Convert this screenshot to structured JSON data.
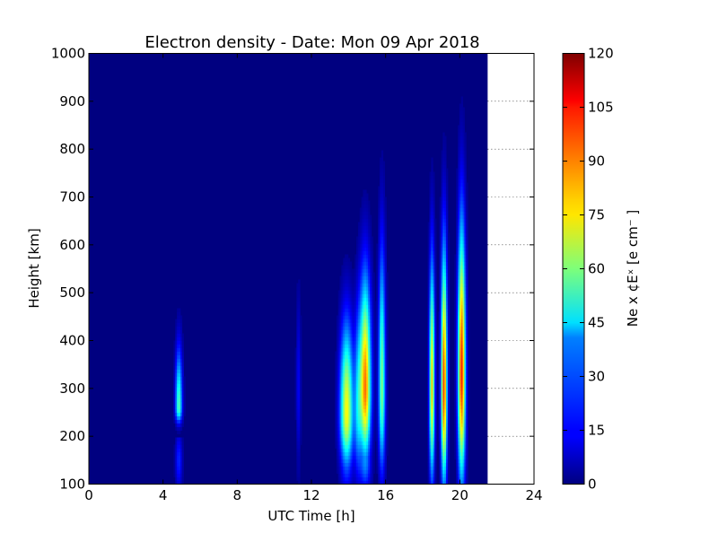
{
  "chart_data": {
    "type": "heatmap",
    "title": "Electron density - Date: Mon 09 Apr 2018",
    "xlabel": "UTC Time [h]",
    "ylabel": "Height [km]",
    "xlim": [
      0,
      24
    ],
    "ylim": [
      100,
      1000
    ],
    "x_ticks": [
      "0",
      "4",
      "8",
      "12",
      "16",
      "20",
      "24"
    ],
    "x_tick_values": [
      0,
      4,
      8,
      12,
      16,
      20,
      24
    ],
    "y_ticks": [
      "100",
      "200",
      "300",
      "400",
      "500",
      "600",
      "700",
      "800",
      "900",
      "1000"
    ],
    "y_tick_values": [
      100,
      200,
      300,
      400,
      500,
      600,
      700,
      800,
      900,
      1000
    ],
    "data_end_time": 21.5,
    "background_value": 0,
    "colormap": "jet",
    "colorbar": {
      "label": "Ne x ¢Eˣ  [e cm⁻ ]",
      "min": 0,
      "max": 120,
      "ticks": [
        "0",
        "15",
        "30",
        "45",
        "60",
        "75",
        "90",
        "105",
        "120"
      ],
      "tick_values": [
        0,
        15,
        30,
        45,
        60,
        75,
        90,
        105,
        120
      ]
    },
    "events": [
      {
        "time": 4.85,
        "width": 0.18,
        "peak": 55,
        "peak_height": 260,
        "spread_low": 30,
        "spread_high": 120
      },
      {
        "time": 11.3,
        "width": 0.12,
        "peak": 14,
        "peak_height": 300,
        "spread_low": 140,
        "spread_high": 180
      },
      {
        "time": 13.9,
        "width": 0.35,
        "peak": 75,
        "peak_height": 250,
        "spread_low": 110,
        "spread_high": 180
      },
      {
        "time": 14.5,
        "width": 0.18,
        "peak": 30,
        "peak_height": 250,
        "spread_low": 120,
        "spread_high": 200
      },
      {
        "time": 14.9,
        "width": 0.3,
        "peak": 92,
        "peak_height": 300,
        "spread_low": 140,
        "spread_high": 220
      },
      {
        "time": 15.8,
        "width": 0.18,
        "peak": 60,
        "peak_height": 300,
        "spread_low": 160,
        "spread_high": 280
      },
      {
        "time": 18.5,
        "width": 0.14,
        "peak": 80,
        "peak_height": 300,
        "spread_low": 180,
        "spread_high": 260
      },
      {
        "time": 19.15,
        "width": 0.16,
        "peak": 98,
        "peak_height": 300,
        "spread_low": 190,
        "spread_high": 280
      },
      {
        "time": 20.1,
        "width": 0.2,
        "peak": 102,
        "peak_height": 330,
        "spread_low": 210,
        "spread_high": 300
      }
    ]
  }
}
